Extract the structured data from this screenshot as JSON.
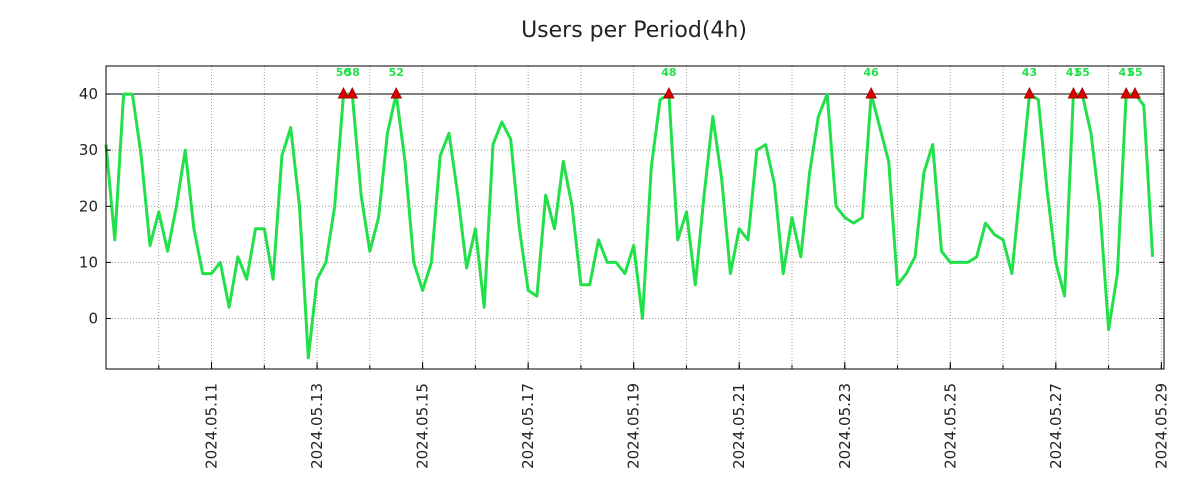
{
  "chart_data": {
    "type": "line",
    "title": "Users per Period(4h)",
    "xlabel": "",
    "ylabel": "",
    "ylim": [
      -9,
      45
    ],
    "yticks": [
      0,
      10,
      20,
      30,
      40
    ],
    "threshold": 40,
    "x_tick_labels": [
      "2024.05.11",
      "2024.05.13",
      "2024.05.15",
      "2024.05.17",
      "2024.05.19",
      "2024.05.21",
      "2024.05.23",
      "2024.05.25",
      "2024.05.27",
      "2024.05.29"
    ],
    "x_range_days": [
      9.0,
      29.05
    ],
    "x_tick_days": [
      11,
      13,
      15,
      17,
      19,
      21,
      23,
      25,
      27,
      29
    ],
    "period_days": 0.16667,
    "values": [
      31,
      14,
      40,
      40,
      29,
      13,
      19,
      12,
      20,
      30,
      16,
      8,
      8,
      10,
      2,
      11,
      7,
      16,
      16,
      7,
      29,
      34,
      20,
      -7,
      7,
      10,
      20,
      40,
      40,
      22,
      12,
      18,
      33,
      40,
      28,
      10,
      5,
      10,
      29,
      33,
      22,
      9,
      16,
      2,
      31,
      35,
      32,
      16,
      5,
      4,
      22,
      16,
      28,
      20,
      6,
      6,
      14,
      10,
      10,
      8,
      13,
      0,
      27,
      39,
      40,
      14,
      19,
      6,
      22,
      36,
      25,
      8,
      16,
      14,
      30,
      31,
      24,
      8,
      18,
      11,
      26,
      36,
      40,
      20,
      18,
      17,
      18,
      40,
      34,
      28,
      6,
      8,
      11,
      26,
      31,
      12,
      10,
      10,
      10,
      11,
      17,
      15,
      14,
      8,
      24,
      40,
      39,
      23,
      10,
      4,
      40,
      40,
      33,
      20,
      -2,
      8,
      40,
      40,
      38,
      11
    ],
    "peaks": [
      {
        "index": 27,
        "label": "50"
      },
      {
        "index": 28,
        "label": "58"
      },
      {
        "index": 33,
        "label": "52"
      },
      {
        "index": 64,
        "label": "48"
      },
      {
        "index": 87,
        "label": "46"
      },
      {
        "index": 105,
        "label": "43"
      },
      {
        "index": 110,
        "label": "41"
      },
      {
        "index": 111,
        "label": "55"
      },
      {
        "index": 116,
        "label": "41"
      },
      {
        "index": 117,
        "label": "55"
      }
    ],
    "colors": {
      "line": "#22e04a",
      "marker": "#dd0000",
      "peak_label": "#22e04a",
      "threshold": "#000000",
      "grid": "#999999"
    }
  }
}
